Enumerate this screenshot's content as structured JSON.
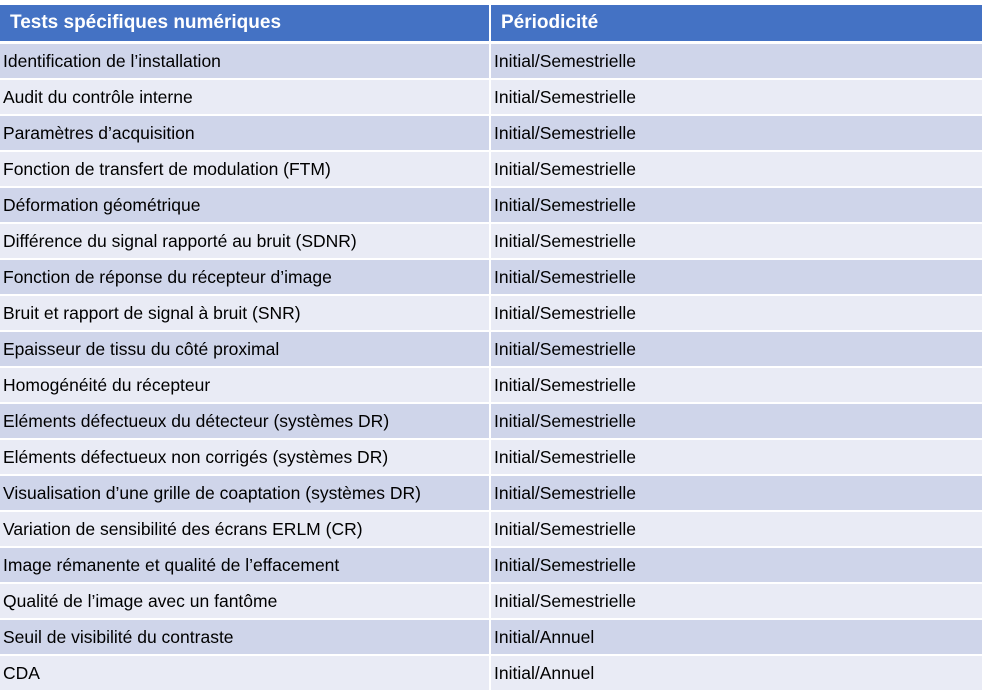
{
  "table": {
    "headers": [
      "Tests spécifiques numériques",
      "Périodicité"
    ],
    "rows": [
      {
        "test": "Identification de l’installation",
        "periodicite": "Initial/Semestrielle"
      },
      {
        "test": "Audit du contrôle interne",
        "periodicite": "Initial/Semestrielle"
      },
      {
        "test": "Paramètres d’acquisition",
        "periodicite": "Initial/Semestrielle"
      },
      {
        "test": "Fonction de transfert de modulation (FTM)",
        "periodicite": "Initial/Semestrielle"
      },
      {
        "test": "Déformation géométrique",
        "periodicite": "Initial/Semestrielle"
      },
      {
        "test": "Différence du signal rapporté au bruit (SDNR)",
        "periodicite": "Initial/Semestrielle"
      },
      {
        "test": "Fonction de réponse du récepteur d’image",
        "periodicite": "Initial/Semestrielle"
      },
      {
        "test": "Bruit et rapport de signal à bruit (SNR)",
        "periodicite": "Initial/Semestrielle"
      },
      {
        "test": "Epaisseur de tissu du côté proximal",
        "periodicite": "Initial/Semestrielle"
      },
      {
        "test": "Homogénéité du récepteur",
        "periodicite": "Initial/Semestrielle"
      },
      {
        "test": "Eléments défectueux du détecteur (systèmes DR)",
        "periodicite": "Initial/Semestrielle"
      },
      {
        "test": "Eléments défectueux non corrigés (systèmes DR)",
        "periodicite": "Initial/Semestrielle"
      },
      {
        "test": "Visualisation d’une grille de coaptation (systèmes DR)",
        "periodicite": "Initial/Semestrielle"
      },
      {
        "test": "Variation de sensibilité des écrans ERLM (CR)",
        "periodicite": "Initial/Semestrielle"
      },
      {
        "test": "Image rémanente et qualité de l’effacement",
        "periodicite": "Initial/Semestrielle"
      },
      {
        "test": "Qualité de l’image avec un fantôme",
        "periodicite": "Initial/Semestrielle"
      },
      {
        "test": "Seuil de visibilité du contraste",
        "periodicite": "Initial/Annuel"
      },
      {
        "test": "CDA",
        "periodicite": "Initial/Annuel"
      }
    ]
  },
  "colors": {
    "header_bg": "#4472c4",
    "row_dark": "#cfd5ea",
    "row_light": "#e9ebf5"
  }
}
